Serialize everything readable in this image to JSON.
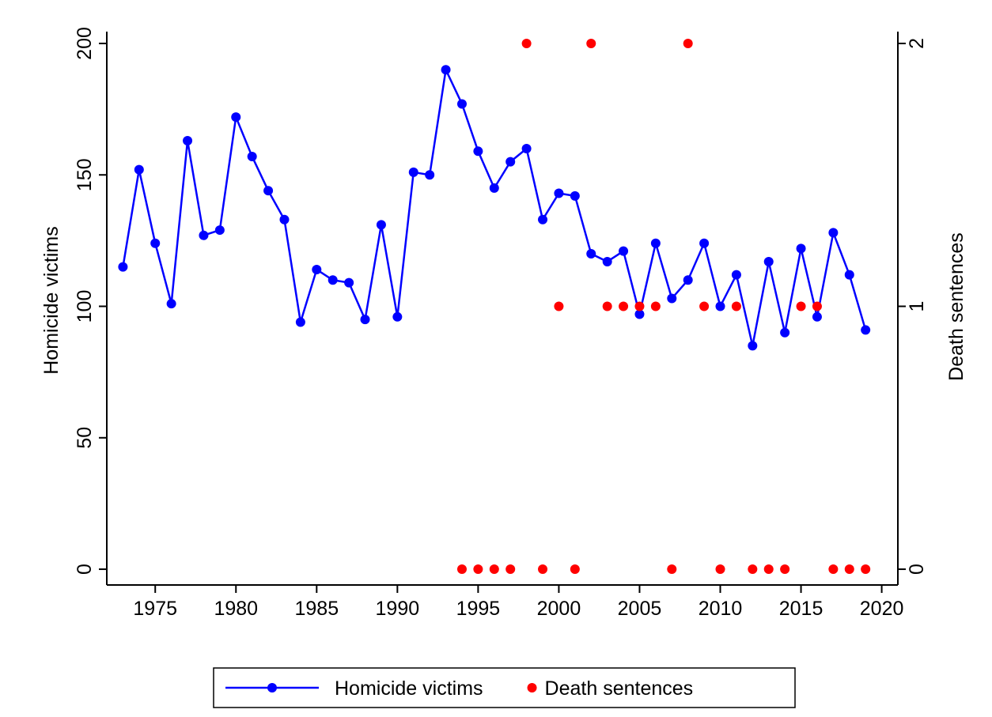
{
  "chart_data": {
    "type": "line",
    "xlim": [
      1972,
      2021
    ],
    "xticks": [
      1975,
      1980,
      1985,
      1990,
      1995,
      2000,
      2005,
      2010,
      2015,
      2020
    ],
    "ylim": [
      -6,
      204.5
    ],
    "yticks": [
      0,
      50,
      100,
      150,
      200
    ],
    "y2lim": [
      -0.06,
      2.045
    ],
    "y2ticks": [
      0,
      1,
      2
    ],
    "ylabel": "Homicide victims",
    "y2label": "Death sentences",
    "legend": "bottom",
    "series": [
      {
        "name": "Homicide victims",
        "color": "#0000ff",
        "style": "line-marker",
        "x": [
          1973,
          1974,
          1975,
          1976,
          1977,
          1978,
          1979,
          1980,
          1981,
          1982,
          1983,
          1984,
          1985,
          1986,
          1987,
          1988,
          1989,
          1990,
          1991,
          1992,
          1993,
          1994,
          1995,
          1996,
          1997,
          1998,
          1999,
          2000,
          2001,
          2002,
          2003,
          2004,
          2005,
          2006,
          2007,
          2008,
          2009,
          2010,
          2011,
          2012,
          2013,
          2014,
          2015,
          2016,
          2017,
          2018,
          2019
        ],
        "values": [
          115,
          152,
          124,
          101,
          163,
          127,
          129,
          172,
          157,
          144,
          133,
          94,
          114,
          110,
          109,
          95,
          131,
          96,
          151,
          150,
          190,
          177,
          159,
          145,
          155,
          160,
          133,
          143,
          142,
          120,
          117,
          121,
          97,
          124,
          103,
          110,
          124,
          100,
          112,
          85,
          117,
          90,
          122,
          96,
          128,
          112,
          91
        ]
      },
      {
        "name": "Death sentences",
        "color": "#ff0000",
        "style": "marker",
        "axis": "y2",
        "x": [
          1994,
          1995,
          1996,
          1997,
          1998,
          1999,
          2000,
          2001,
          2002,
          2003,
          2004,
          2005,
          2006,
          2007,
          2008,
          2009,
          2010,
          2011,
          2012,
          2013,
          2014,
          2015,
          2016,
          2017,
          2018,
          2019
        ],
        "values": [
          0,
          0,
          0,
          0,
          2,
          0,
          1,
          0,
          2,
          1,
          1,
          1,
          1,
          0,
          2,
          1,
          0,
          1,
          0,
          0,
          0,
          1,
          1,
          0,
          0,
          0
        ]
      }
    ]
  }
}
